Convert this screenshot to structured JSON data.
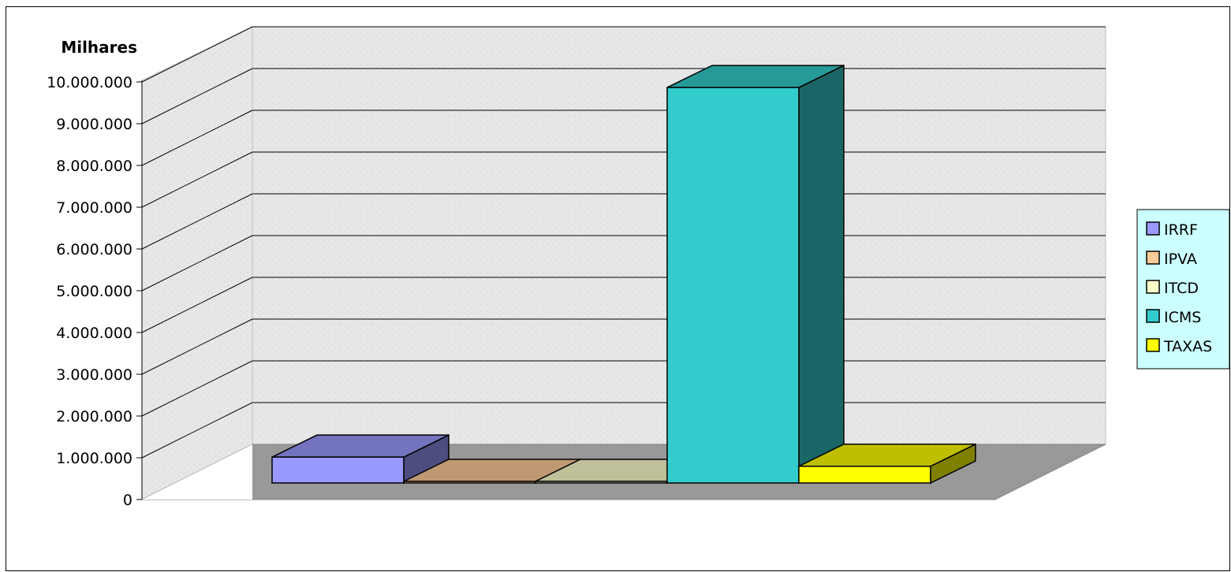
{
  "chart_data": {
    "type": "bar",
    "style": "3d-column",
    "unit_label": "Milhares",
    "categories": [
      "IRRF",
      "IPVA",
      "ITCD",
      "ICMS",
      "TAXAS"
    ],
    "values": [
      620000,
      10000,
      10000,
      9470000,
      400000
    ],
    "ylim": [
      0,
      10000000
    ],
    "yticks": [
      0,
      1000000,
      2000000,
      3000000,
      4000000,
      5000000,
      6000000,
      7000000,
      8000000,
      9000000,
      10000000
    ],
    "ytick_labels": [
      "0",
      "1.000.000",
      "2.000.000",
      "3.000.000",
      "4.000.000",
      "5.000.000",
      "6.000.000",
      "7.000.000",
      "8.000.000",
      "9.000.000",
      "10.000.000"
    ],
    "grid": true,
    "legend_position": "right",
    "legend": [
      "IRRF",
      "IPVA",
      "ITCD",
      "ICMS",
      "TAXAS"
    ],
    "colors": {
      "IRRF": {
        "front": "#9999ff",
        "top": "#7373bf",
        "side": "#4d4d80"
      },
      "IPVA": {
        "front": "#ffcc99",
        "top": "#bf9973",
        "side": "#80664d"
      },
      "ITCD": {
        "front": "#ffffcc",
        "top": "#bfbf99",
        "side": "#808066"
      },
      "ICMS": {
        "front": "#33cccc",
        "top": "#269999",
        "side": "#1a6666"
      },
      "TAXAS": {
        "front": "#ffff00",
        "top": "#bfbf00",
        "side": "#808000"
      }
    },
    "wall_color": "#e8e8e8",
    "floor_color": "#999999",
    "legend_bg": "#ccffff"
  }
}
